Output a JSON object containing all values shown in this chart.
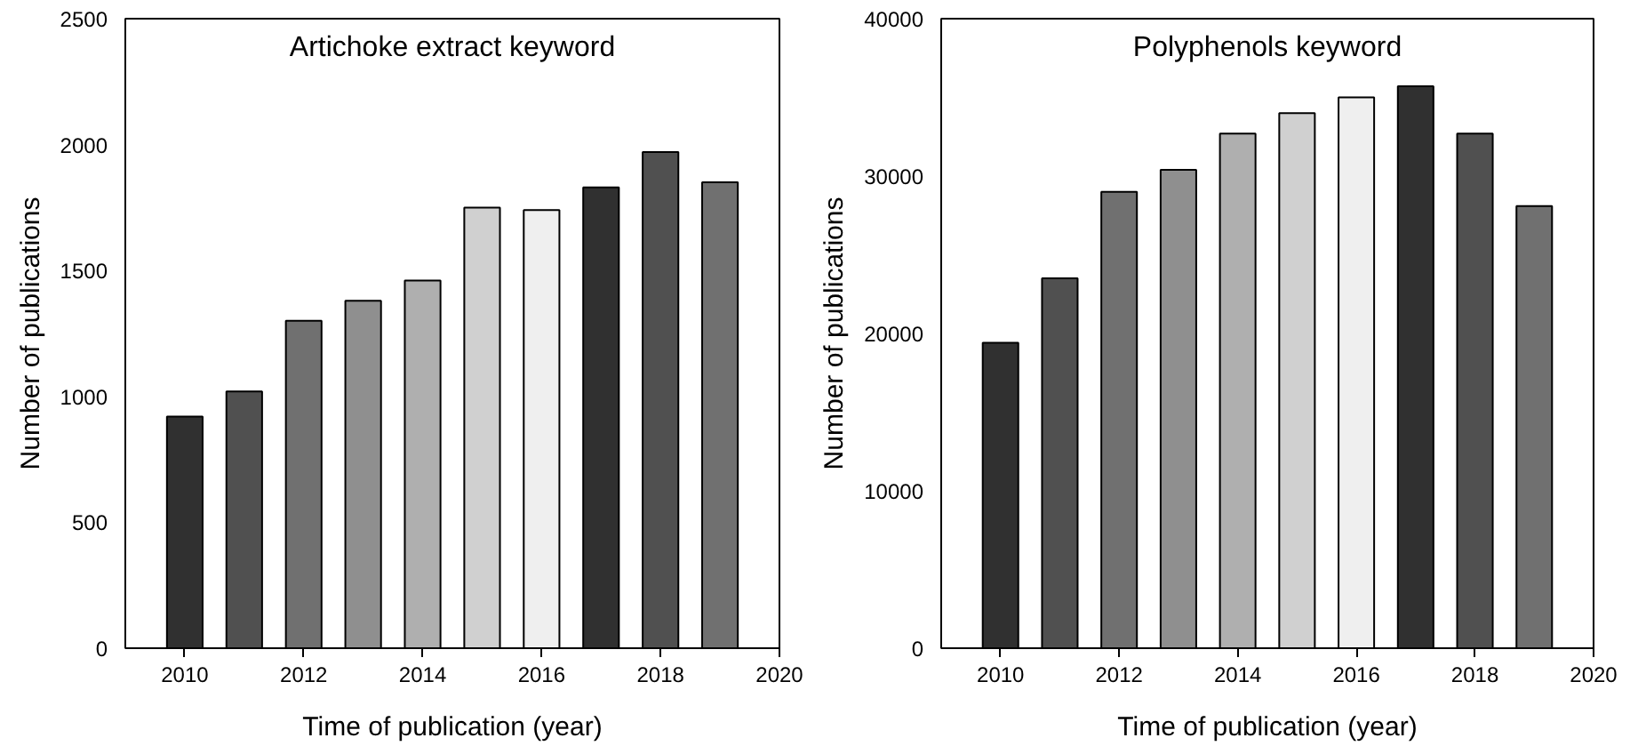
{
  "chart_data": [
    {
      "type": "bar",
      "title": "Artichoke extract keyword",
      "xlabel": "Time of publication (year)",
      "ylabel": "Number of publications",
      "x": [
        2010,
        2011,
        2012,
        2013,
        2014,
        2015,
        2016,
        2017,
        2018,
        2019
      ],
      "values": [
        920,
        1020,
        1300,
        1380,
        1460,
        1750,
        1740,
        1830,
        1970,
        1850
      ],
      "colors": [
        "#303030",
        "#505050",
        "#707070",
        "#8f8f8f",
        "#afafaf",
        "#d0d0d0",
        "#efefef",
        "#303030",
        "#505050",
        "#707070"
      ],
      "xlim": [
        2009,
        2020
      ],
      "xticks": [
        2010,
        2012,
        2014,
        2016,
        2018,
        2020
      ],
      "ylim": [
        0,
        2500
      ],
      "yticks": [
        0,
        500,
        1000,
        1500,
        2000,
        2500
      ]
    },
    {
      "type": "bar",
      "title": "Polyphenols keyword",
      "xlabel": "Time of publication (year)",
      "ylabel": "Number of publications",
      "x": [
        2010,
        2011,
        2012,
        2013,
        2014,
        2015,
        2016,
        2017,
        2018,
        2019
      ],
      "values": [
        19400,
        23500,
        29000,
        30400,
        32700,
        34000,
        35000,
        35700,
        32700,
        28100
      ],
      "colors": [
        "#303030",
        "#505050",
        "#707070",
        "#8f8f8f",
        "#afafaf",
        "#d0d0d0",
        "#efefef",
        "#303030",
        "#505050",
        "#707070"
      ],
      "xlim": [
        2009,
        2020
      ],
      "xticks": [
        2010,
        2012,
        2014,
        2016,
        2018,
        2020
      ],
      "ylim": [
        0,
        40000
      ],
      "yticks": [
        0,
        10000,
        20000,
        30000,
        40000
      ]
    }
  ]
}
